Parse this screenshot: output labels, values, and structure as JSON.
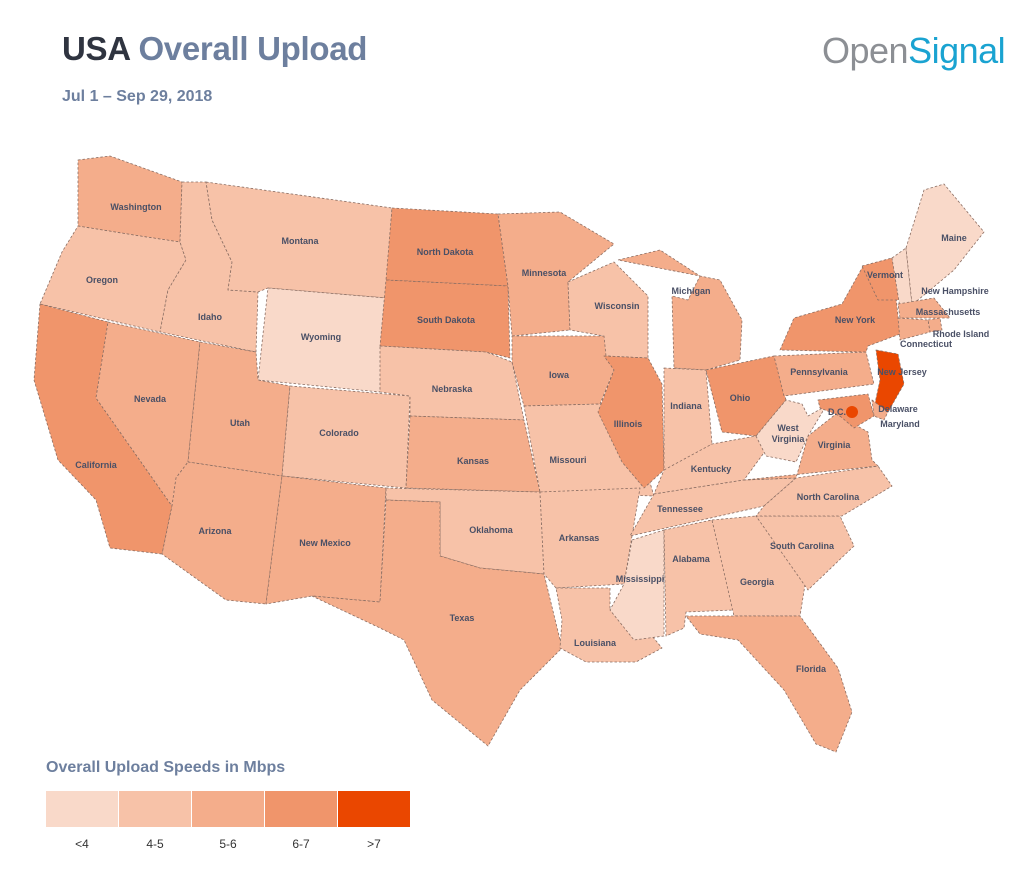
{
  "header": {
    "title_country": "USA",
    "title_metric": "Overall Upload",
    "subtitle": "Jul 1 – Sep 29, 2018",
    "logo_part1": "Open",
    "logo_part2": "Signal"
  },
  "legend": {
    "title": "Overall Upload Speeds in Mbps",
    "bins": [
      {
        "label": "<4",
        "color": "#f9d9c9"
      },
      {
        "label": "4-5",
        "color": "#f7c2a8"
      },
      {
        "label": "5-6",
        "color": "#f4ad8b"
      },
      {
        "label": "6-7",
        "color": "#f0956b"
      },
      {
        "label": ">7",
        "color": "#ea4700"
      }
    ]
  },
  "states": [
    {
      "name": "Washington",
      "bin": "5-6"
    },
    {
      "name": "Oregon",
      "bin": "4-5"
    },
    {
      "name": "California",
      "bin": "6-7"
    },
    {
      "name": "Idaho",
      "bin": "4-5"
    },
    {
      "name": "Nevada",
      "bin": "5-6"
    },
    {
      "name": "Montana",
      "bin": "4-5"
    },
    {
      "name": "Wyoming",
      "bin": "<4"
    },
    {
      "name": "Utah",
      "bin": "5-6"
    },
    {
      "name": "Colorado",
      "bin": "4-5"
    },
    {
      "name": "Arizona",
      "bin": "5-6"
    },
    {
      "name": "New Mexico",
      "bin": "5-6"
    },
    {
      "name": "North Dakota",
      "bin": "6-7"
    },
    {
      "name": "South Dakota",
      "bin": "6-7"
    },
    {
      "name": "Nebraska",
      "bin": "4-5"
    },
    {
      "name": "Kansas",
      "bin": "5-6"
    },
    {
      "name": "Oklahoma",
      "bin": "4-5"
    },
    {
      "name": "Texas",
      "bin": "5-6"
    },
    {
      "name": "Minnesota",
      "bin": "5-6"
    },
    {
      "name": "Iowa",
      "bin": "5-6"
    },
    {
      "name": "Missouri",
      "bin": "4-5"
    },
    {
      "name": "Arkansas",
      "bin": "4-5"
    },
    {
      "name": "Louisiana",
      "bin": "4-5"
    },
    {
      "name": "Wisconsin",
      "bin": "4-5"
    },
    {
      "name": "Illinois",
      "bin": "6-7"
    },
    {
      "name": "Michigan",
      "bin": "5-6"
    },
    {
      "name": "Indiana",
      "bin": "4-5"
    },
    {
      "name": "Ohio",
      "bin": "6-7"
    },
    {
      "name": "Kentucky",
      "bin": "4-5"
    },
    {
      "name": "Tennessee",
      "bin": "4-5"
    },
    {
      "name": "Mississippi",
      "bin": "<4"
    },
    {
      "name": "Alabama",
      "bin": "4-5"
    },
    {
      "name": "Georgia",
      "bin": "4-5"
    },
    {
      "name": "Florida",
      "bin": "5-6"
    },
    {
      "name": "South Carolina",
      "bin": "4-5"
    },
    {
      "name": "North Carolina",
      "bin": "4-5"
    },
    {
      "name": "Virginia",
      "bin": "5-6"
    },
    {
      "name": "West Virginia",
      "bin": "<4"
    },
    {
      "name": "Pennsylvania",
      "bin": "5-6"
    },
    {
      "name": "New York",
      "bin": "6-7"
    },
    {
      "name": "Vermont",
      "bin": "6-7"
    },
    {
      "name": "New Hampshire",
      "bin": "<4"
    },
    {
      "name": "Maine",
      "bin": "<4"
    },
    {
      "name": "Massachusetts",
      "bin": "5-6"
    },
    {
      "name": "Rhode Island",
      "bin": "5-6"
    },
    {
      "name": "Connecticut",
      "bin": "5-6"
    },
    {
      "name": "New Jersey",
      "bin": ">7"
    },
    {
      "name": "Delaware",
      "bin": "5-6"
    },
    {
      "name": "Maryland",
      "bin": "6-7"
    },
    {
      "name": "D.C.",
      "bin": ">7"
    }
  ]
}
